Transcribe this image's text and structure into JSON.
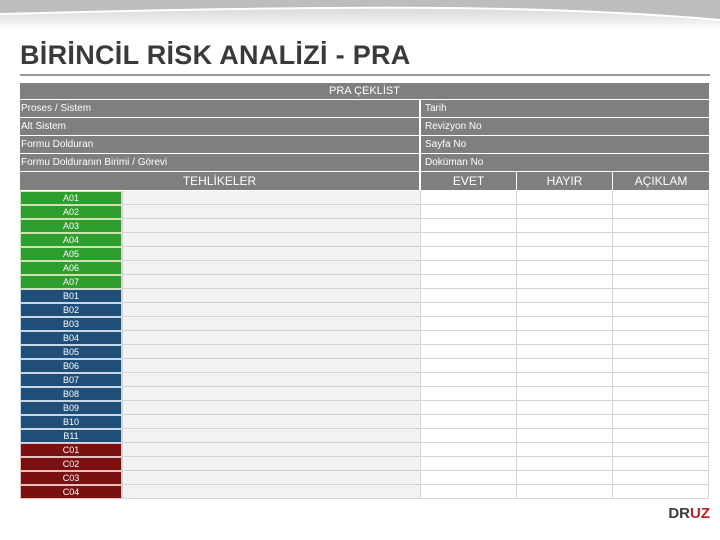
{
  "title": "BİRİNCİL RİSK ANALİZİ - PRA",
  "sheet": {
    "header": "PRA ÇEKLİST",
    "info_rows": [
      {
        "left": "Proses / Sistem",
        "right": "Tarih"
      },
      {
        "left": "Alt Sistem",
        "right": "Revizyon No"
      },
      {
        "left": "Formu Dolduran",
        "right": "Sayfa No"
      },
      {
        "left": "Formu Dolduranın Birimi / Görevi",
        "right": "Doküman No"
      }
    ],
    "columns": {
      "hazards": "TEHLİKELER",
      "yes": "EVET",
      "no": "HAYIR",
      "explanation": "AÇIKLAM"
    },
    "rows": [
      {
        "code": "A01",
        "group": "a"
      },
      {
        "code": "A02",
        "group": "a"
      },
      {
        "code": "A03",
        "group": "a"
      },
      {
        "code": "A04",
        "group": "a"
      },
      {
        "code": "A05",
        "group": "a"
      },
      {
        "code": "A06",
        "group": "a"
      },
      {
        "code": "A07",
        "group": "a"
      },
      {
        "code": "B01",
        "group": "b"
      },
      {
        "code": "B02",
        "group": "b"
      },
      {
        "code": "B03",
        "group": "b"
      },
      {
        "code": "B04",
        "group": "b"
      },
      {
        "code": "B05",
        "group": "b"
      },
      {
        "code": "B06",
        "group": "b"
      },
      {
        "code": "B07",
        "group": "b"
      },
      {
        "code": "B08",
        "group": "b"
      },
      {
        "code": "B09",
        "group": "b"
      },
      {
        "code": "B10",
        "group": "b"
      },
      {
        "code": "B11",
        "group": "b"
      },
      {
        "code": "C01",
        "group": "c"
      },
      {
        "code": "C02",
        "group": "c"
      },
      {
        "code": "C03",
        "group": "c"
      },
      {
        "code": "C04",
        "group": "c"
      }
    ]
  },
  "brand": {
    "part1": "DR",
    "part2": "UZ"
  },
  "colors": {
    "group_a": "#2e9e2e",
    "group_b": "#1f4e79",
    "group_c": "#7a1010",
    "header_gray": "#7f7f7f",
    "brand_red": "#c0201e"
  }
}
